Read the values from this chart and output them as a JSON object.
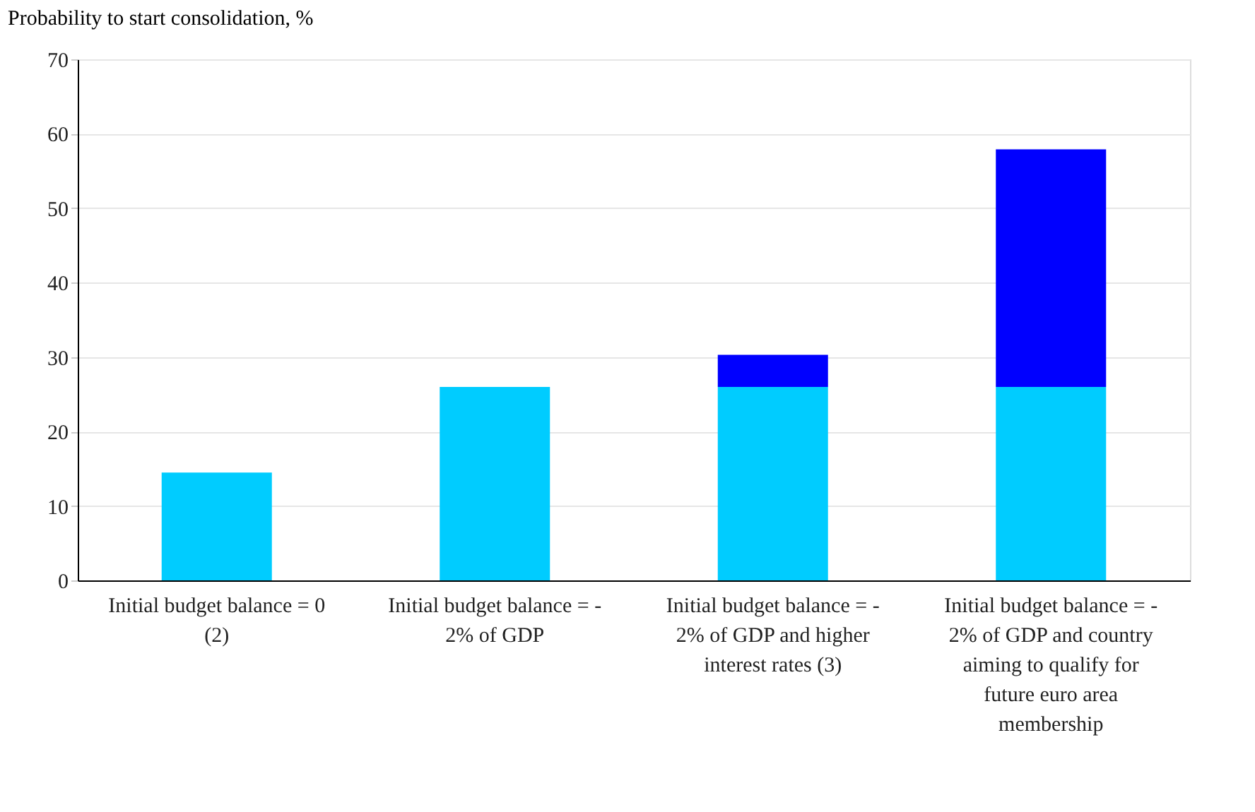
{
  "chart_data": {
    "type": "bar",
    "stacked": true,
    "ylabel": "Probability to start consolidation, %",
    "categories": [
      "Initial budget balance = 0 (2)",
      "Initial budget balance = - 2% of GDP",
      "Initial budget balance = - 2% of GDP and higher interest rates (3)",
      "Initial budget balance = - 2% of GDP and country aiming to qualify for future euro area membership"
    ],
    "series": [
      {
        "color": "#00ccff",
        "values": [
          14.5,
          26,
          26,
          26
        ]
      },
      {
        "color": "#0000ff",
        "values": [
          null,
          null,
          4.3,
          31.9
        ]
      }
    ],
    "ylim": [
      0,
      70
    ],
    "yticks": [
      0,
      10,
      20,
      30,
      40,
      50,
      60,
      70
    ],
    "grid": "y",
    "legend": false
  }
}
